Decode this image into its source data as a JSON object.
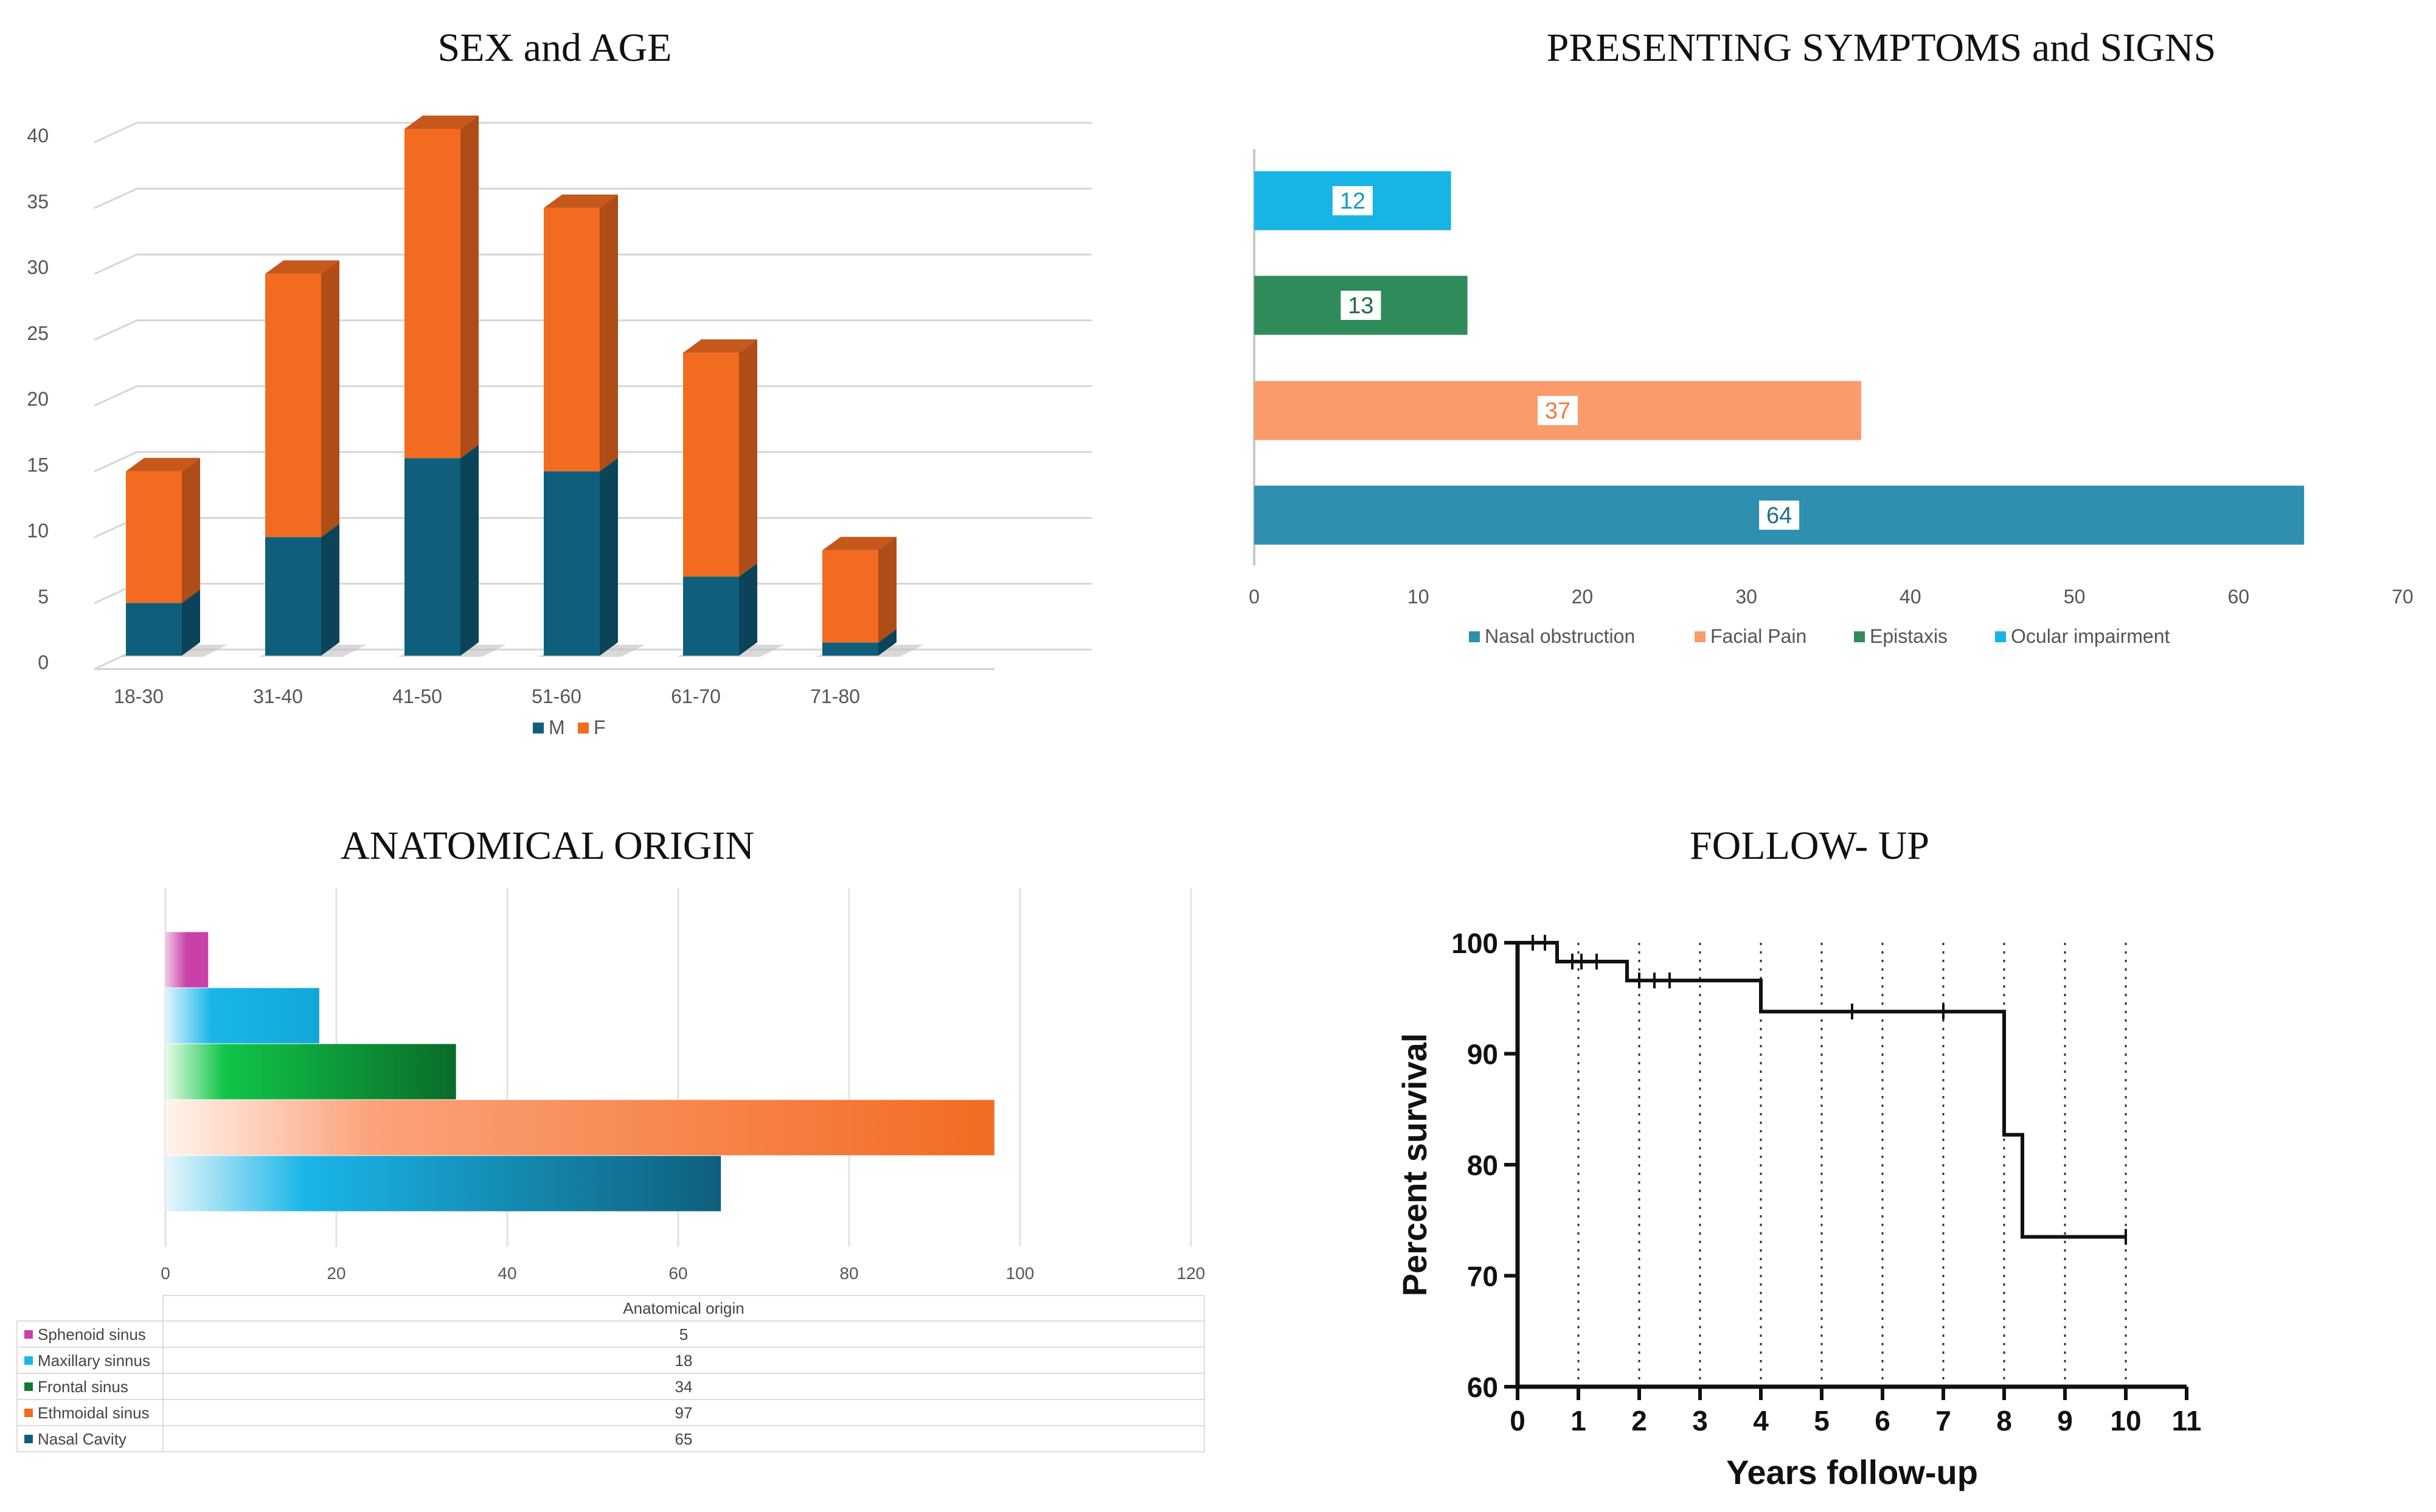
{
  "chart_data": [
    {
      "id": "sex_age",
      "type": "bar",
      "stacked": true,
      "title": "SEX and AGE",
      "categories": [
        "18-30",
        "31-40",
        "41-50",
        "51-60",
        "61-70",
        "71-80"
      ],
      "series": [
        {
          "name": "M",
          "values": [
            4,
            9,
            15,
            14,
            6,
            1
          ],
          "color": "#0f5f7c"
        },
        {
          "name": "F",
          "values": [
            10,
            20,
            25,
            20,
            17,
            7
          ],
          "color": "#f26b21"
        }
      ],
      "ylim": [
        0,
        40
      ],
      "yticks": [
        0,
        5,
        10,
        15,
        20,
        25,
        30,
        35,
        40
      ],
      "legend_position": "bottom"
    },
    {
      "id": "symptoms",
      "type": "bar",
      "orientation": "horizontal",
      "title": "PRESENTING SYMPTOMS and SIGNS",
      "series": [
        {
          "name": "Nasal obstruction",
          "value": 64,
          "color": "#2e8fae",
          "label_color": "#1d6e8a"
        },
        {
          "name": "Facial Pain",
          "value": 37,
          "color": "#fb9a6b",
          "label_color": "#f07a40"
        },
        {
          "name": "Epistaxis",
          "value": 13,
          "color": "#2f8c5a",
          "label_color": "#1f6d42"
        },
        {
          "name": "Ocular impairment",
          "value": 12,
          "color": "#17b5e6",
          "label_color": "#0e9cc9"
        }
      ],
      "xlim": [
        0,
        70
      ],
      "xticks": [
        0,
        10,
        20,
        30,
        40,
        50,
        60,
        70
      ],
      "legend_position": "bottom"
    },
    {
      "id": "anatomical",
      "type": "bar",
      "orientation": "horizontal",
      "title": "ANATOMICAL ORIGIN",
      "table_header": "Anatomical origin",
      "rows": [
        {
          "name": "Sphenoid sinus",
          "value": 5,
          "value_text": "5",
          "color": "#c940a8"
        },
        {
          "name": "Maxillary sinnus",
          "value": 18,
          "value_text": "18",
          "color": "#1ab6e8"
        },
        {
          "name": "Frontal sinus",
          "value": 34,
          "value_text": "34",
          "color": "#0e7a2e"
        },
        {
          "name": "Ethmoidal sinus",
          "value": 97,
          "value_text": "97",
          "color": "#f26b21"
        },
        {
          "name": "Nasal Cavity",
          "value": 65,
          "value_text": "65",
          "color": "#0f5f7c"
        }
      ],
      "xlim": [
        0,
        120
      ],
      "xticks": [
        0,
        20,
        40,
        60,
        80,
        100,
        120
      ]
    },
    {
      "id": "followup",
      "type": "line",
      "subtype": "kaplan-meier",
      "title": "FOLLOW- UP",
      "xlabel": "Years follow-up",
      "ylabel": "Percent survival",
      "xlim": [
        0,
        11
      ],
      "ylim": [
        60,
        100
      ],
      "xticks": [
        0,
        1,
        2,
        3,
        4,
        5,
        6,
        7,
        8,
        9,
        10,
        11
      ],
      "yticks": [
        60,
        70,
        80,
        90,
        100
      ],
      "vgrid_years": [
        1,
        2,
        3,
        4,
        5,
        6,
        7,
        8,
        9,
        10
      ],
      "step_points": [
        [
          0,
          100
        ],
        [
          0.65,
          100
        ],
        [
          0.65,
          98.3
        ],
        [
          1.8,
          98.3
        ],
        [
          1.8,
          96.6
        ],
        [
          4,
          96.6
        ],
        [
          4,
          93.8
        ],
        [
          8,
          93.8
        ],
        [
          8,
          82.7
        ],
        [
          8.3,
          82.7
        ],
        [
          8.3,
          73.5
        ],
        [
          10,
          73.5
        ]
      ],
      "censor_marks": [
        [
          0.25,
          100
        ],
        [
          0.45,
          100
        ],
        [
          0.9,
          98.3
        ],
        [
          1.05,
          98.3
        ],
        [
          1.3,
          98.3
        ],
        [
          2.0,
          96.6
        ],
        [
          2.25,
          96.6
        ],
        [
          2.5,
          96.6
        ],
        [
          5.5,
          93.8
        ],
        [
          7.0,
          93.8
        ],
        [
          10,
          73.5
        ]
      ]
    }
  ]
}
